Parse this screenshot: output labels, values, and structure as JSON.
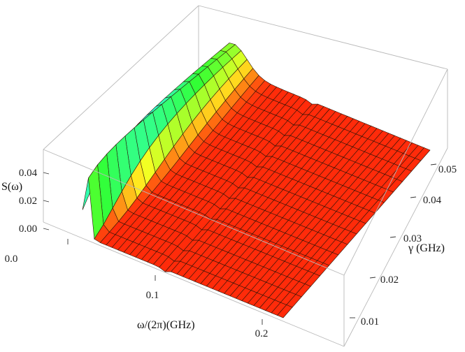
{
  "chart_data": {
    "type": "surface",
    "title": "",
    "xlabel": "ω/(2π)(GHz)",
    "ylabel": "γ (GHz)",
    "zlabel": "S(ω)",
    "x_ticks": [
      "0.0",
      "0.1",
      "0.2"
    ],
    "y_ticks": [
      "0.01",
      "0.02",
      "0.03",
      "0.04",
      "0.05"
    ],
    "z_ticks": [
      "0.00",
      "0.02",
      "0.04"
    ],
    "xlim": [
      0.0,
      0.25
    ],
    "ylim": [
      0.005,
      0.055
    ],
    "zlim": [
      -0.004,
      0.05
    ],
    "colormap": "rainbow (red low, violet high)",
    "base_color": "#ff3c1c",
    "features": [
      {
        "name": "low-frequency peak",
        "x": 0.005,
        "height_at_low_gamma": 0.047,
        "height_at_high_gamma": 0.016
      },
      {
        "name": "sharp dip",
        "x": 0.1
      }
    ]
  }
}
